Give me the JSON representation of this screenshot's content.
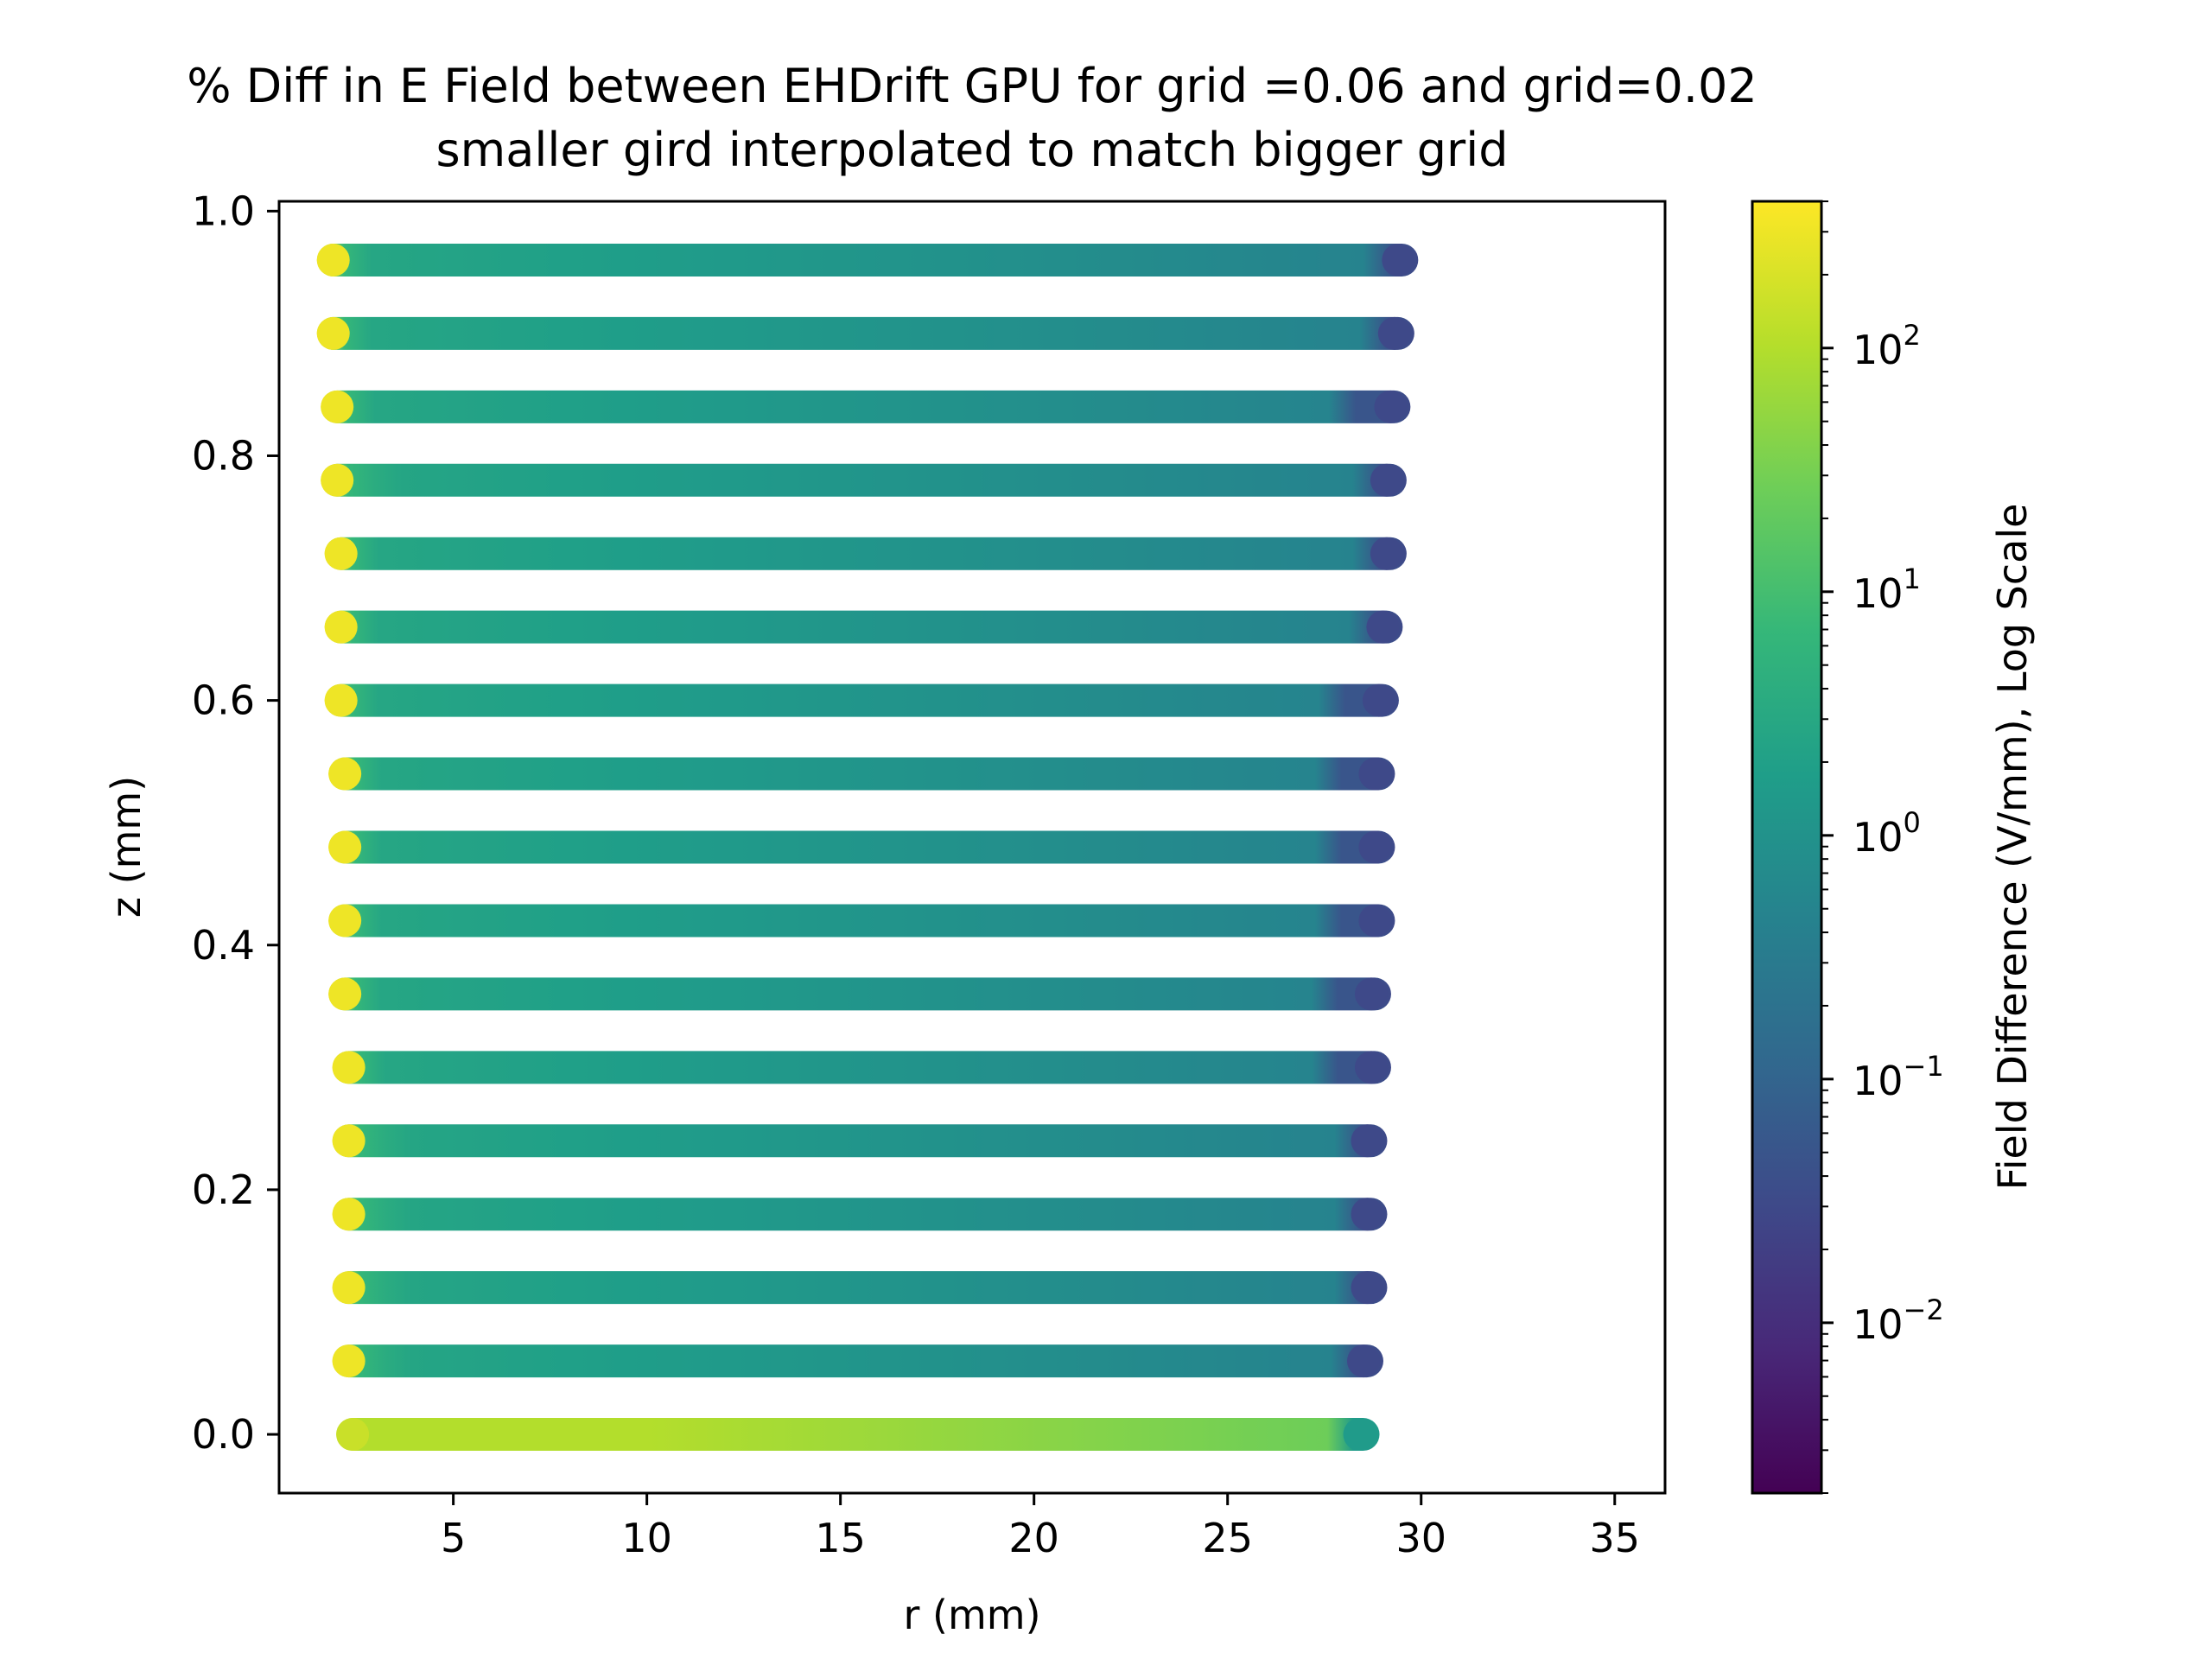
{
  "chart_data": {
    "type": "scatter",
    "title": "% Diff in E Field between EHDrift GPU for grid =0.06 and grid=0.02",
    "subtitle": "smaller gird interpolated to match bigger grid",
    "xlabel": "r (mm)",
    "ylabel": "z (mm)",
    "xlim": [
      0.5,
      36.3
    ],
    "ylim": [
      -0.048,
      1.008
    ],
    "xticks": [
      5,
      10,
      15,
      20,
      25,
      30,
      35
    ],
    "yticks": [
      0.0,
      0.2,
      0.4,
      0.6,
      0.8,
      1.0
    ],
    "xtick_labels": [
      "5",
      "10",
      "15",
      "20",
      "25",
      "30",
      "35"
    ],
    "ytick_labels": [
      "0.0",
      "0.2",
      "0.4",
      "0.6",
      "0.8",
      "1.0"
    ],
    "grid": false,
    "colormap": "viridis",
    "colorbar": {
      "label": "Field Difference (V/mm), Log Scale",
      "scale": "log",
      "range": [
        0.002,
        400
      ],
      "ticks": [
        0.01,
        0.1,
        1,
        10,
        100
      ],
      "tick_labels": [
        {
          "base": "10",
          "exp": "−2"
        },
        {
          "base": "10",
          "exp": "−1"
        },
        {
          "base": "10",
          "exp": "0"
        },
        {
          "base": "10",
          "exp": "1"
        },
        {
          "base": "10",
          "exp": "2"
        }
      ]
    },
    "series_rows": [
      {
        "z": 0.0,
        "r_start": 2.4,
        "r_end": 28.5,
        "value_profile": "high"
      },
      {
        "z": 0.06,
        "r_start": 2.3,
        "r_end": 28.6,
        "value_profile": "normal"
      },
      {
        "z": 0.12,
        "r_start": 2.3,
        "r_end": 28.7,
        "value_profile": "normal"
      },
      {
        "z": 0.18,
        "r_start": 2.3,
        "r_end": 28.7,
        "value_profile": "normal"
      },
      {
        "z": 0.24,
        "r_start": 2.3,
        "r_end": 28.7,
        "value_profile": "normal"
      },
      {
        "z": 0.3,
        "r_start": 2.3,
        "r_end": 28.8,
        "value_profile": "normal"
      },
      {
        "z": 0.36,
        "r_start": 2.2,
        "r_end": 28.8,
        "value_profile": "normal"
      },
      {
        "z": 0.42,
        "r_start": 2.2,
        "r_end": 28.9,
        "value_profile": "normal"
      },
      {
        "z": 0.48,
        "r_start": 2.2,
        "r_end": 28.9,
        "value_profile": "normal"
      },
      {
        "z": 0.54,
        "r_start": 2.2,
        "r_end": 28.9,
        "value_profile": "normal"
      },
      {
        "z": 0.6,
        "r_start": 2.1,
        "r_end": 29.0,
        "value_profile": "normal"
      },
      {
        "z": 0.66,
        "r_start": 2.1,
        "r_end": 29.1,
        "value_profile": "normal"
      },
      {
        "z": 0.72,
        "r_start": 2.1,
        "r_end": 29.2,
        "value_profile": "normal"
      },
      {
        "z": 0.78,
        "r_start": 2.0,
        "r_end": 29.2,
        "value_profile": "normal"
      },
      {
        "z": 0.84,
        "r_start": 2.0,
        "r_end": 29.3,
        "value_profile": "normal"
      },
      {
        "z": 0.9,
        "r_start": 1.9,
        "r_end": 29.4,
        "value_profile": "normal"
      },
      {
        "z": 0.96,
        "r_start": 1.9,
        "r_end": 29.5,
        "value_profile": "normal"
      }
    ]
  }
}
